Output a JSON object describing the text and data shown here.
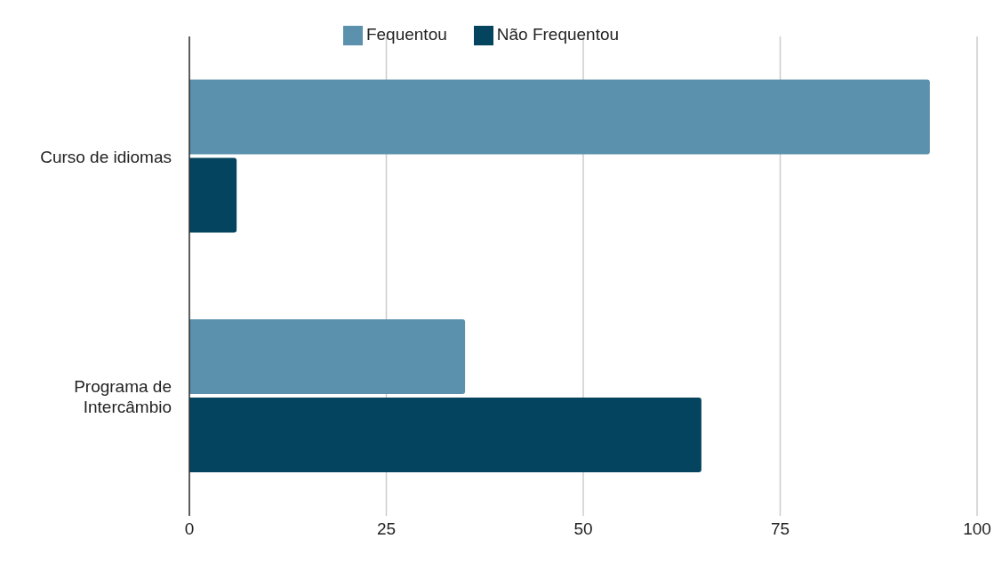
{
  "chart_data": {
    "type": "bar",
    "orientation": "horizontal",
    "categories": [
      "Curso de idiomas",
      "Programa de Intercâmbio"
    ],
    "series": [
      {
        "name": "Fequentou",
        "color": "#5b91ad",
        "values": [
          94,
          35
        ]
      },
      {
        "name": "Não Frequentou",
        "color": "#04445e",
        "values": [
          6,
          65
        ]
      }
    ],
    "xlim": [
      0,
      100
    ],
    "xticks": [
      0,
      25,
      50,
      75,
      100
    ],
    "grid": "x",
    "legend": "top"
  }
}
